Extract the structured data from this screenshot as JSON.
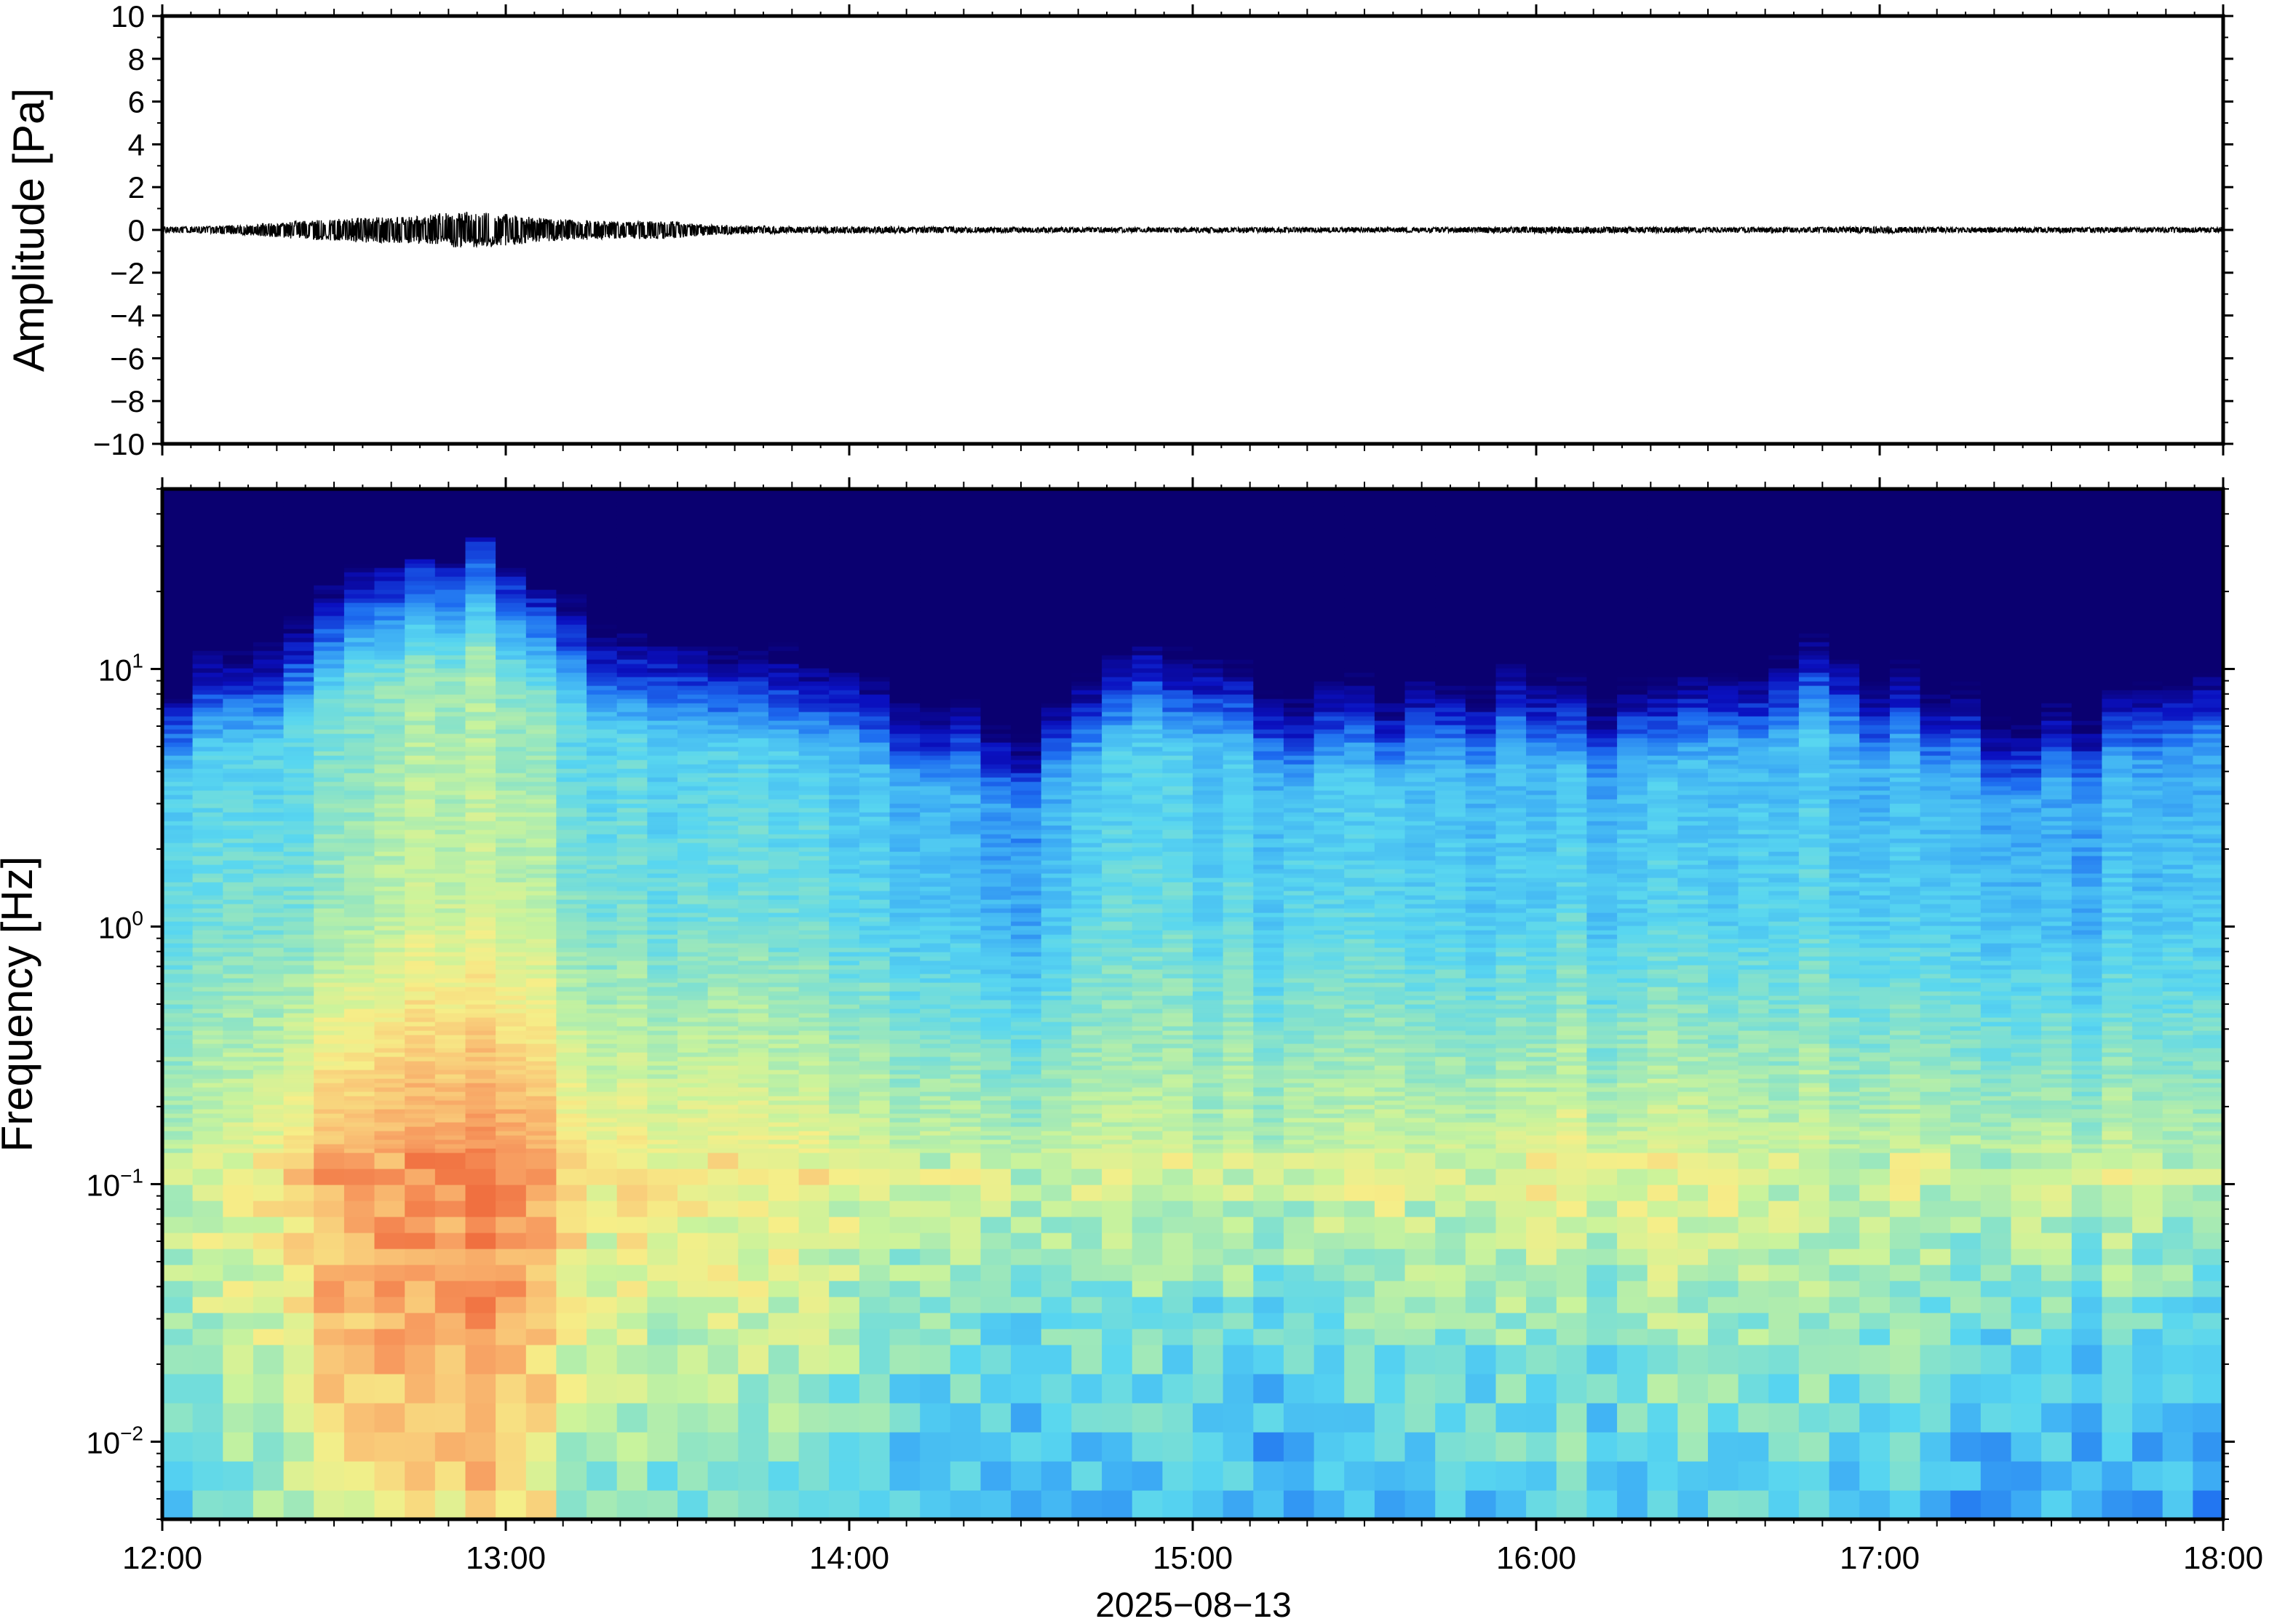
{
  "chart_data": [
    {
      "type": "line",
      "panel": "waveform",
      "ylabel": "Amplitude [Pa]",
      "ylim": [
        -10,
        10
      ],
      "yticks": [
        10,
        8,
        6,
        4,
        2,
        0,
        -2,
        -4,
        -6,
        -8,
        -10
      ],
      "ytick_labels": [
        "10",
        "8",
        "6",
        "4",
        "2",
        "0",
        "−2",
        "−4",
        "−6",
        "−8",
        "−10"
      ],
      "x_range": [
        "12:00",
        "18:00"
      ],
      "grid": false,
      "series": [
        {
          "description_of_envelope": "peak amplitude per 5 minute window",
          "time_hours": [
            12.0,
            12.083,
            12.167,
            12.25,
            12.333,
            12.417,
            12.5,
            12.583,
            12.667,
            12.75,
            12.833,
            12.917,
            13.0,
            13.083,
            13.167,
            13.25,
            13.333,
            13.417,
            13.5,
            13.583,
            13.667,
            13.75,
            13.833,
            13.917,
            14.0,
            14.25,
            14.5,
            14.75,
            15.0,
            15.25,
            15.5,
            15.75,
            16.0,
            16.25,
            16.5,
            16.75,
            17.0,
            17.25,
            17.5,
            17.75,
            18.0
          ],
          "peak_pa": [
            0.15,
            0.15,
            0.2,
            0.25,
            0.35,
            0.45,
            0.5,
            0.6,
            0.6,
            0.65,
            0.8,
            0.85,
            0.75,
            0.6,
            0.5,
            0.45,
            0.4,
            0.45,
            0.4,
            0.25,
            0.2,
            0.2,
            0.15,
            0.15,
            0.15,
            0.15,
            0.12,
            0.12,
            0.12,
            0.12,
            0.12,
            0.12,
            0.15,
            0.15,
            0.12,
            0.12,
            0.15,
            0.12,
            0.12,
            0.12,
            0.12
          ]
        }
      ]
    },
    {
      "type": "heatmap",
      "panel": "spectrogram",
      "ylabel": "Frequency [Hz]",
      "xlabel": "2025−08−13",
      "y_scale": "log",
      "ylim": [
        0.005,
        50
      ],
      "yticks": [
        0.01,
        0.1,
        1,
        10
      ],
      "ytick_labels": [
        {
          "base": "10",
          "exp": "−2"
        },
        {
          "base": "10",
          "exp": "−1"
        },
        {
          "base": "10",
          "exp": "0"
        },
        {
          "base": "10",
          "exp": "1"
        }
      ],
      "xticks": [
        "12:00",
        "13:00",
        "14:00",
        "15:00",
        "16:00",
        "17:00",
        "18:00"
      ],
      "x_range_hours": [
        12,
        18
      ],
      "colormap": [
        "#0a0070",
        "#0a10c0",
        "#1d6cf0",
        "#3fb0f4",
        "#58d6f0",
        "#8fe4c4",
        "#c9f39c",
        "#f6ee88",
        "#f9c878",
        "#f79c60",
        "#f07040"
      ],
      "time_hours": [
        12.0,
        12.25,
        12.5,
        12.75,
        13.0,
        13.25,
        13.5,
        13.75,
        14.0,
        14.25,
        14.5,
        14.75,
        15.0,
        15.25,
        15.5,
        15.75,
        16.0,
        16.25,
        16.5,
        16.75,
        17.0,
        17.25,
        17.5,
        17.75,
        18.0
      ],
      "upper_cutoff_hz": [
        11,
        13,
        22,
        28,
        27,
        18,
        14,
        12,
        11,
        10,
        7,
        13,
        14,
        11,
        10,
        10,
        13,
        10,
        12,
        15,
        12,
        10,
        9,
        12,
        12
      ],
      "relative_power_at_0_03hz": [
        0.55,
        0.6,
        0.85,
        0.9,
        0.9,
        0.65,
        0.6,
        0.6,
        0.55,
        0.5,
        0.45,
        0.45,
        0.45,
        0.45,
        0.45,
        0.5,
        0.55,
        0.5,
        0.55,
        0.5,
        0.5,
        0.45,
        0.45,
        0.45,
        0.45
      ],
      "relative_power_at_0_1hz": [
        0.6,
        0.65,
        0.9,
        0.95,
        0.95,
        0.75,
        0.7,
        0.7,
        0.65,
        0.65,
        0.6,
        0.6,
        0.6,
        0.6,
        0.6,
        0.62,
        0.7,
        0.65,
        0.65,
        0.62,
        0.62,
        0.6,
        0.6,
        0.6,
        0.6
      ],
      "relative_power_at_1hz": [
        0.45,
        0.45,
        0.55,
        0.65,
        0.6,
        0.5,
        0.45,
        0.45,
        0.4,
        0.38,
        0.3,
        0.4,
        0.42,
        0.4,
        0.38,
        0.38,
        0.4,
        0.38,
        0.38,
        0.4,
        0.38,
        0.36,
        0.32,
        0.36,
        0.38
      ]
    }
  ]
}
